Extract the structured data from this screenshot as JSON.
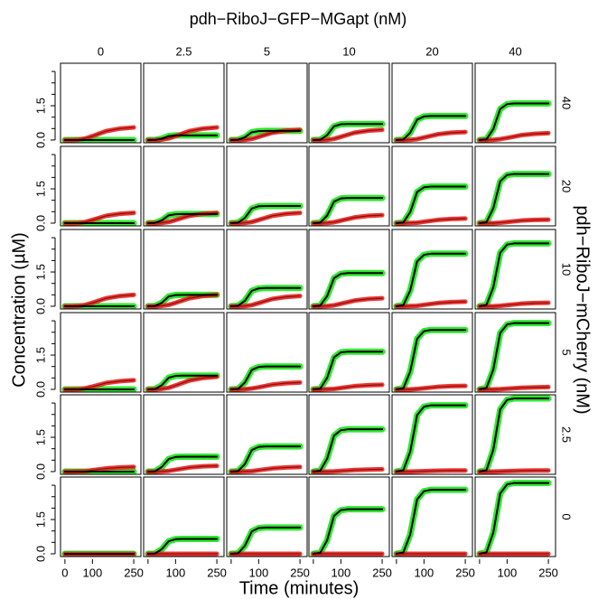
{
  "chart_data": {
    "type": "line-grid",
    "title": "pdh−RiboJ−GFP−MGapt (nM)",
    "xlabel": "Time (minutes)",
    "ylabel": "Concentration (µM)",
    "right_label": "pdh−RiboJ−mCherry (nM)",
    "col_labels": [
      "0",
      "2.5",
      "5",
      "10",
      "20",
      "40"
    ],
    "row_labels": [
      "40",
      "20",
      "10",
      "5",
      "2.5",
      "0"
    ],
    "x": [
      0,
      25,
      50,
      75,
      100,
      125,
      150,
      200,
      250
    ],
    "xlim": [
      -16,
      276
    ],
    "ylim": [
      -0.12,
      3.36
    ],
    "xticks": [
      0,
      100,
      250
    ],
    "yticks": [
      {
        "value": 0,
        "label": "0.0"
      },
      {
        "value": 1.5,
        "label": "1.5"
      }
    ],
    "yminor": [
      0.5,
      1,
      2,
      2.5,
      3
    ],
    "gfp_color": "#19e619",
    "fit_color": "#000000",
    "mcherry_color": "#e8231e",
    "mcherry_line_color": "#8b0d0d",
    "panels": [
      [
        {
          "gfp": [
            0,
            0,
            0,
            0,
            0,
            0,
            0,
            0,
            0
          ],
          "mcherry": [
            0,
            0,
            0.02,
            0.07,
            0.17,
            0.28,
            0.39,
            0.5,
            0.55
          ]
        },
        {
          "gfp": [
            0,
            0,
            0.06,
            0.17,
            0.2,
            0.2,
            0.2,
            0.2,
            0.2
          ],
          "mcherry": [
            0,
            0,
            0.02,
            0.07,
            0.17,
            0.28,
            0.39,
            0.5,
            0.55
          ]
        },
        {
          "gfp": [
            0,
            0.01,
            0.12,
            0.34,
            0.39,
            0.4,
            0.4,
            0.4,
            0.4
          ],
          "mcherry": [
            0,
            0,
            0.01,
            0.05,
            0.14,
            0.23,
            0.32,
            0.41,
            0.45
          ]
        },
        {
          "gfp": [
            0,
            0.01,
            0.21,
            0.6,
            0.69,
            0.7,
            0.7,
            0.7,
            0.7
          ],
          "mcherry": [
            0,
            0,
            0.01,
            0.05,
            0.14,
            0.23,
            0.32,
            0.41,
            0.45
          ]
        },
        {
          "gfp": [
            0,
            0.02,
            0.32,
            0.89,
            1.03,
            1.05,
            1.05,
            1.05,
            1.05
          ],
          "mcherry": [
            0,
            0,
            0.01,
            0.04,
            0.11,
            0.18,
            0.25,
            0.32,
            0.35
          ]
        },
        {
          "gfp": [
            0,
            0.03,
            0.48,
            1.36,
            1.57,
            1.6,
            1.6,
            1.6,
            1.6
          ],
          "mcherry": [
            0,
            0,
            0.01,
            0.04,
            0.09,
            0.15,
            0.21,
            0.27,
            0.3
          ]
        }
      ],
      [
        {
          "gfp": [
            0,
            0,
            0,
            0,
            0,
            0,
            0,
            0,
            0
          ],
          "mcherry": [
            0,
            0,
            0.01,
            0.05,
            0.14,
            0.23,
            0.32,
            0.41,
            0.45
          ]
        },
        {
          "gfp": [
            0,
            0.01,
            0.12,
            0.34,
            0.39,
            0.4,
            0.4,
            0.4,
            0.4
          ],
          "mcherry": [
            0,
            0,
            0.01,
            0.05,
            0.14,
            0.23,
            0.32,
            0.41,
            0.45
          ]
        },
        {
          "gfp": [
            0,
            0.02,
            0.23,
            0.64,
            0.74,
            0.75,
            0.75,
            0.75,
            0.75
          ],
          "mcherry": [
            0,
            0,
            0.01,
            0.05,
            0.14,
            0.23,
            0.32,
            0.41,
            0.45
          ]
        },
        {
          "gfp": [
            0,
            0.02,
            0.33,
            0.94,
            1.08,
            1.1,
            1.1,
            1.1,
            1.1
          ],
          "mcherry": [
            0,
            0,
            0.01,
            0.04,
            0.11,
            0.18,
            0.25,
            0.32,
            0.35
          ]
        },
        {
          "gfp": [
            0,
            0.03,
            0.48,
            1.36,
            1.57,
            1.6,
            1.6,
            1.6,
            1.6
          ],
          "mcherry": [
            0,
            0,
            0.01,
            0.02,
            0.06,
            0.1,
            0.14,
            0.18,
            0.2
          ]
        },
        {
          "gfp": [
            0,
            0.04,
            0.65,
            1.83,
            2.11,
            2.15,
            2.15,
            2.15,
            2.15
          ],
          "mcherry": [
            0,
            0,
            0,
            0.02,
            0.05,
            0.08,
            0.11,
            0.14,
            0.15
          ]
        }
      ],
      [
        {
          "gfp": [
            0,
            0,
            0,
            0,
            0,
            0,
            0,
            0,
            0
          ],
          "mcherry": [
            0,
            0,
            0.02,
            0.06,
            0.15,
            0.25,
            0.35,
            0.45,
            0.5
          ]
        },
        {
          "gfp": [
            0,
            0.01,
            0.15,
            0.43,
            0.49,
            0.5,
            0.5,
            0.5,
            0.5
          ],
          "mcherry": [
            0,
            0,
            0.02,
            0.06,
            0.15,
            0.25,
            0.35,
            0.45,
            0.5
          ]
        },
        {
          "gfp": [
            0,
            0.02,
            0.24,
            0.68,
            0.78,
            0.8,
            0.8,
            0.8,
            0.8
          ],
          "mcherry": [
            0,
            0,
            0.01,
            0.05,
            0.14,
            0.23,
            0.32,
            0.41,
            0.45
          ]
        },
        {
          "gfp": [
            0,
            0.03,
            0.44,
            1.23,
            1.42,
            1.45,
            1.45,
            1.45,
            1.45
          ],
          "mcherry": [
            0,
            0,
            0.01,
            0.04,
            0.11,
            0.18,
            0.25,
            0.32,
            0.35
          ]
        },
        {
          "gfp": [
            0,
            0.05,
            0.69,
            1.96,
            2.25,
            2.3,
            2.3,
            2.3,
            2.3
          ],
          "mcherry": [
            0,
            0,
            0.01,
            0.02,
            0.06,
            0.1,
            0.14,
            0.18,
            0.2
          ]
        },
        {
          "gfp": [
            0,
            0.06,
            0.83,
            2.34,
            2.7,
            2.75,
            2.75,
            2.75,
            2.75
          ],
          "mcherry": [
            0,
            0,
            0,
            0.02,
            0.05,
            0.08,
            0.11,
            0.14,
            0.15
          ]
        }
      ],
      [
        {
          "gfp": [
            0,
            0,
            0,
            0,
            0,
            0,
            0,
            0,
            0
          ],
          "mcherry": [
            0,
            0,
            0.01,
            0.05,
            0.12,
            0.2,
            0.28,
            0.36,
            0.4
          ]
        },
        {
          "gfp": [
            0,
            0.01,
            0.18,
            0.51,
            0.59,
            0.6,
            0.6,
            0.6,
            0.6
          ],
          "mcherry": [
            0,
            0,
            0.02,
            0.07,
            0.17,
            0.28,
            0.39,
            0.5,
            0.55
          ]
        },
        {
          "gfp": [
            0,
            0.02,
            0.3,
            0.85,
            0.98,
            1,
            1,
            1,
            1
          ],
          "mcherry": [
            0,
            0,
            0.01,
            0.04,
            0.09,
            0.15,
            0.21,
            0.27,
            0.3
          ]
        },
        {
          "gfp": [
            0,
            0.03,
            0.5,
            1.4,
            1.62,
            1.65,
            1.65,
            1.65,
            1.65
          ],
          "mcherry": [
            0,
            0,
            0.01,
            0.02,
            0.06,
            0.1,
            0.14,
            0.18,
            0.2
          ]
        },
        {
          "gfp": [
            0,
            0.05,
            0.78,
            2.21,
            2.55,
            2.6,
            2.6,
            2.6,
            2.6
          ],
          "mcherry": [
            0,
            0,
            0,
            0.02,
            0.05,
            0.08,
            0.11,
            0.14,
            0.15
          ]
        },
        {
          "gfp": [
            0,
            0.06,
            0.87,
            2.47,
            2.84,
            2.9,
            2.9,
            2.9,
            2.9
          ],
          "mcherry": [
            0,
            0,
            0,
            0.01,
            0.03,
            0.05,
            0.07,
            0.09,
            0.1
          ]
        }
      ],
      [
        {
          "gfp": [
            0,
            0,
            0,
            0,
            0,
            0,
            0,
            0,
            0
          ],
          "mcherry": [
            0,
            0,
            0.01,
            0.02,
            0.06,
            0.1,
            0.14,
            0.18,
            0.2
          ]
        },
        {
          "gfp": [
            0,
            0.01,
            0.2,
            0.55,
            0.64,
            0.65,
            0.65,
            0.65,
            0.65
          ],
          "mcherry": [
            0,
            0,
            0.01,
            0.03,
            0.08,
            0.13,
            0.18,
            0.23,
            0.25
          ]
        },
        {
          "gfp": [
            0,
            0.02,
            0.33,
            0.94,
            1.08,
            1.1,
            1.1,
            1.1,
            1.1
          ],
          "mcherry": [
            0,
            0,
            0.01,
            0.02,
            0.06,
            0.1,
            0.14,
            0.18,
            0.2
          ]
        },
        {
          "gfp": [
            0,
            0.04,
            0.56,
            1.57,
            1.81,
            1.85,
            1.85,
            1.85,
            1.85
          ],
          "mcherry": [
            0,
            0,
            0,
            0.01,
            0.03,
            0.05,
            0.07,
            0.09,
            0.1
          ]
        },
        {
          "gfp": [
            0,
            0.06,
            0.87,
            2.47,
            2.84,
            2.9,
            2.9,
            2.9,
            2.9
          ],
          "mcherry": [
            0,
            0,
            0,
            0.01,
            0.02,
            0.03,
            0.04,
            0.05,
            0.05
          ]
        },
        {
          "gfp": [
            0,
            0.06,
            0.96,
            2.72,
            3.14,
            3.2,
            3.2,
            3.2,
            3.2
          ],
          "mcherry": [
            0,
            0,
            0,
            0.01,
            0.02,
            0.03,
            0.04,
            0.05,
            0.05
          ]
        }
      ],
      [
        {
          "gfp": [
            0,
            0,
            0,
            0,
            0,
            0,
            0,
            0,
            0
          ],
          "mcherry": [
            0,
            0,
            0,
            0,
            0,
            0,
            0,
            0,
            0
          ]
        },
        {
          "gfp": [
            0,
            0.01,
            0.2,
            0.55,
            0.64,
            0.65,
            0.65,
            0.65,
            0.65
          ],
          "mcherry": [
            0,
            0,
            0,
            0,
            0,
            0,
            0,
            0,
            0
          ]
        },
        {
          "gfp": [
            0,
            0.02,
            0.35,
            0.98,
            1.13,
            1.15,
            1.15,
            1.15,
            1.15
          ],
          "mcherry": [
            0,
            0,
            0,
            0,
            0,
            0,
            0,
            0,
            0
          ]
        },
        {
          "gfp": [
            0,
            0.04,
            0.59,
            1.66,
            1.91,
            1.95,
            1.95,
            1.95,
            1.95
          ],
          "mcherry": [
            0,
            0,
            0,
            0,
            0,
            0,
            0,
            0,
            0
          ]
        },
        {
          "gfp": [
            0,
            0.06,
            0.84,
            2.38,
            2.74,
            2.8,
            2.8,
            2.8,
            2.8
          ],
          "mcherry": [
            0,
            0,
            0,
            0,
            0,
            0,
            0,
            0,
            0
          ]
        },
        {
          "gfp": [
            0,
            0.06,
            0.93,
            2.64,
            3.04,
            3.1,
            3.1,
            3.1,
            3.1
          ],
          "mcherry": [
            0,
            0,
            0,
            0,
            0,
            0,
            0,
            0,
            0
          ]
        }
      ]
    ]
  }
}
